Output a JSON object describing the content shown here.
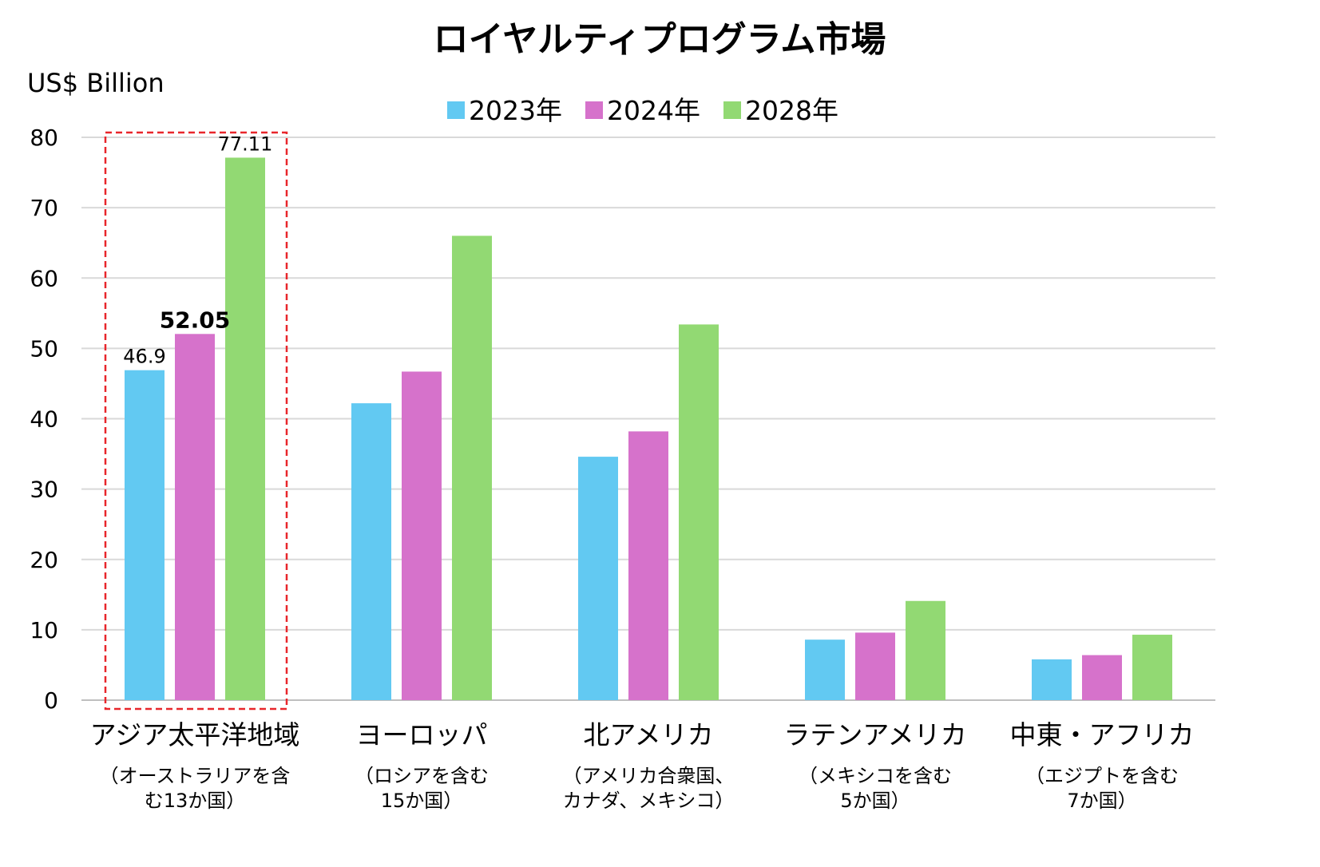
{
  "chart_data": {
    "type": "bar",
    "title": "ロイヤルティプログラム市場",
    "ylabel": "US$ Billion",
    "ylim": [
      0,
      80
    ],
    "yticks": [
      0,
      10,
      20,
      30,
      40,
      50,
      60,
      70,
      80
    ],
    "grid": true,
    "legend_position": "top",
    "categories": [
      "アジア太平洋地域",
      "ヨーロッパ",
      "北アメリカ",
      "ラテンアメリカ",
      "中東・アフリカ"
    ],
    "category_notes": [
      [
        "（オーストラリアを含",
        "む13か国）"
      ],
      [
        "（ロシアを含む",
        "15か国）"
      ],
      [
        "（アメリカ合衆国、",
        "カナダ、メキシコ）"
      ],
      [
        "（メキシコを含む",
        "5か国）"
      ],
      [
        "（エジプトを含む",
        "7か国）"
      ]
    ],
    "series": [
      {
        "name": "2023年",
        "color": "#62C9F2",
        "values": [
          46.9,
          42.2,
          34.6,
          8.6,
          5.8
        ]
      },
      {
        "name": "2024年",
        "color": "#D672CB",
        "values": [
          52.05,
          46.7,
          38.2,
          9.6,
          6.4
        ]
      },
      {
        "name": "2028年",
        "color": "#92D973",
        "values": [
          77.11,
          66.0,
          53.4,
          14.1,
          9.3
        ]
      }
    ],
    "data_labels": [
      {
        "series": 0,
        "category": 0,
        "text": "46.9",
        "bold": false
      },
      {
        "series": 1,
        "category": 0,
        "text": "52.05",
        "bold": true
      },
      {
        "series": 2,
        "category": 0,
        "text": "77.11",
        "bold": false
      }
    ],
    "highlight": {
      "category": 0,
      "style": "dashed",
      "color": "#E8262B"
    }
  }
}
